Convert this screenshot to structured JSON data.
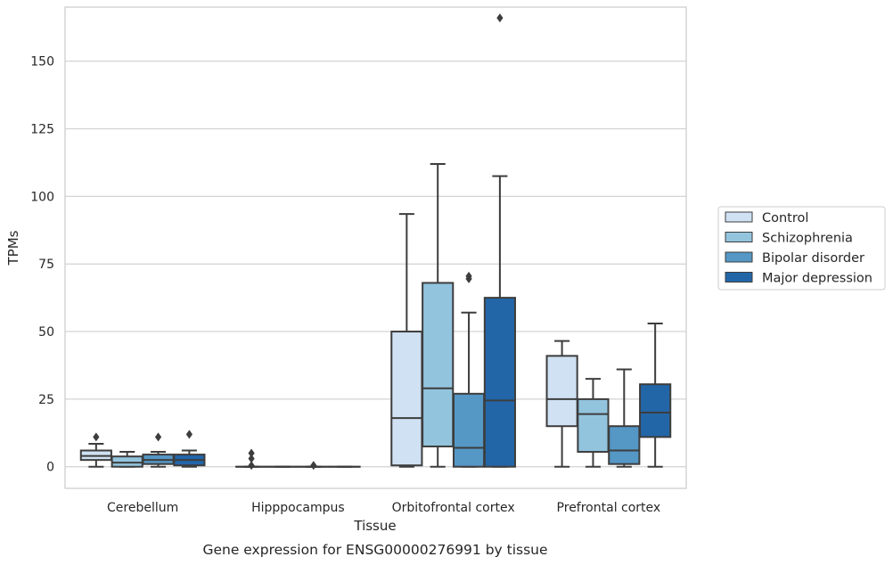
{
  "chart_data": {
    "type": "box",
    "title": "",
    "caption": "Gene expression for ENSG00000276991 by tissue",
    "xlabel": "Tissue",
    "ylabel": "TPMs",
    "ylim": [
      -8,
      170
    ],
    "yticks": [
      0,
      25,
      50,
      75,
      100,
      125,
      150
    ],
    "grid": "horizontal",
    "legend_position": "right",
    "categories": [
      "Cerebellum",
      "Hipppocampus",
      "Orbitofrontal cortex",
      "Prefrontal cortex"
    ],
    "series": [
      {
        "name": "Control",
        "color": "#cfe1f2",
        "boxes": [
          {
            "whislo": 0,
            "q1": 2.5,
            "med": 4.0,
            "q3": 6.0,
            "whishi": 8.5,
            "fliers": [
              11
            ]
          },
          {
            "whislo": 0,
            "q1": 0,
            "med": 0,
            "q3": 0,
            "whishi": 0,
            "fliers": [
              0.5,
              3,
              5
            ]
          },
          {
            "whislo": 0,
            "q1": 0.5,
            "med": 18,
            "q3": 50,
            "whishi": 93.5,
            "fliers": []
          },
          {
            "whislo": 0,
            "q1": 15,
            "med": 25,
            "q3": 41,
            "whishi": 46.5,
            "fliers": []
          }
        ]
      },
      {
        "name": "Schizophrenia",
        "color": "#93c4de",
        "boxes": [
          {
            "whislo": 0,
            "q1": 0,
            "med": 1.5,
            "q3": 3.8,
            "whishi": 5.5,
            "fliers": []
          },
          {
            "whislo": 0,
            "q1": 0,
            "med": 0,
            "q3": 0,
            "whishi": 0,
            "fliers": []
          },
          {
            "whislo": 0,
            "q1": 7.5,
            "med": 29,
            "q3": 68,
            "whishi": 112,
            "fliers": []
          },
          {
            "whislo": 0,
            "q1": 5.5,
            "med": 19.5,
            "q3": 25,
            "whishi": 32.5,
            "fliers": []
          }
        ]
      },
      {
        "name": "Bipolar disorder",
        "color": "#5597c5",
        "boxes": [
          {
            "whislo": 0,
            "q1": 1.0,
            "med": 2.5,
            "q3": 4.5,
            "whishi": 5.5,
            "fliers": [
              11
            ]
          },
          {
            "whislo": 0,
            "q1": 0,
            "med": 0,
            "q3": 0,
            "whishi": 0,
            "fliers": [
              0.5
            ]
          },
          {
            "whislo": 0,
            "q1": 0,
            "med": 7,
            "q3": 27,
            "whishi": 57,
            "fliers": [
              69.5,
              70.5
            ]
          },
          {
            "whislo": 0,
            "q1": 1,
            "med": 6,
            "q3": 15,
            "whishi": 36,
            "fliers": []
          }
        ]
      },
      {
        "name": "Major depression",
        "color": "#2266a8",
        "boxes": [
          {
            "whislo": 0,
            "q1": 0.5,
            "med": 2.5,
            "q3": 4.5,
            "whishi": 6.0,
            "fliers": [
              12
            ]
          },
          {
            "whislo": 0,
            "q1": 0,
            "med": 0,
            "q3": 0,
            "whishi": 0,
            "fliers": []
          },
          {
            "whislo": 0,
            "q1": 0,
            "med": 24.5,
            "q3": 62.5,
            "whishi": 107.5,
            "fliers": [
              166
            ]
          },
          {
            "whislo": 0,
            "q1": 11,
            "med": 20,
            "q3": 30.5,
            "whishi": 53,
            "fliers": []
          }
        ]
      }
    ]
  }
}
